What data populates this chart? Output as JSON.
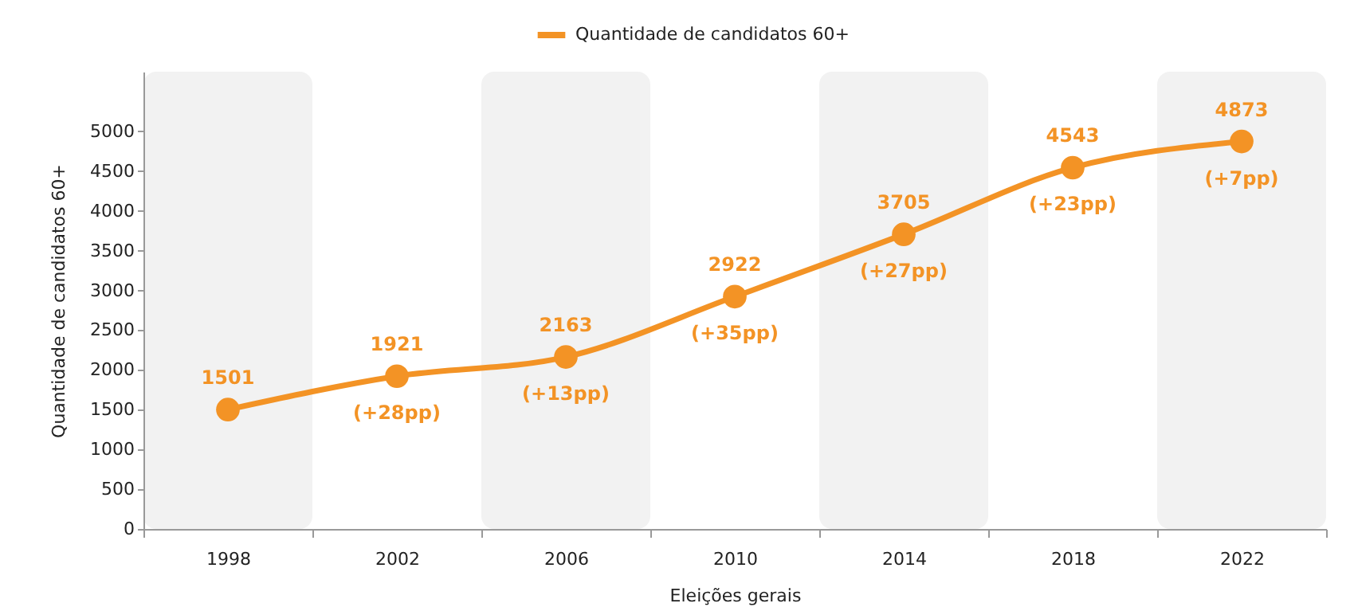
{
  "chart_data": {
    "type": "line",
    "xlabel": "Eleições gerais",
    "ylabel": "Quantidade de candidatos 60+",
    "categories": [
      "1998",
      "2002",
      "2006",
      "2010",
      "2014",
      "2018",
      "2022"
    ],
    "series": [
      {
        "name": "Quantidade de candidatos 60+",
        "color": "#f39325",
        "values": [
          1501,
          1921,
          2163,
          2922,
          3705,
          4543,
          4873
        ]
      }
    ],
    "ylim": [
      0,
      5750
    ],
    "yticks": [
      0,
      500,
      1000,
      1500,
      2000,
      2500,
      3000,
      3500,
      4000,
      4500,
      5000
    ],
    "data_labels": true,
    "marker": "circle",
    "legend": "top",
    "grid": false,
    "annotations": [
      {
        "text": "(+28pp)",
        "x": "2002",
        "y": 1921
      },
      {
        "text": "(+13pp)",
        "x": "2006",
        "y": 2163
      },
      {
        "text": "(+35pp)",
        "x": "2010",
        "y": 2922
      },
      {
        "text": "(+27pp)",
        "x": "2014",
        "y": 3705
      },
      {
        "text": "(+23pp)",
        "x": "2018",
        "y": 4543
      },
      {
        "text": "(+7pp)",
        "x": "2022",
        "y": 4873
      }
    ]
  }
}
